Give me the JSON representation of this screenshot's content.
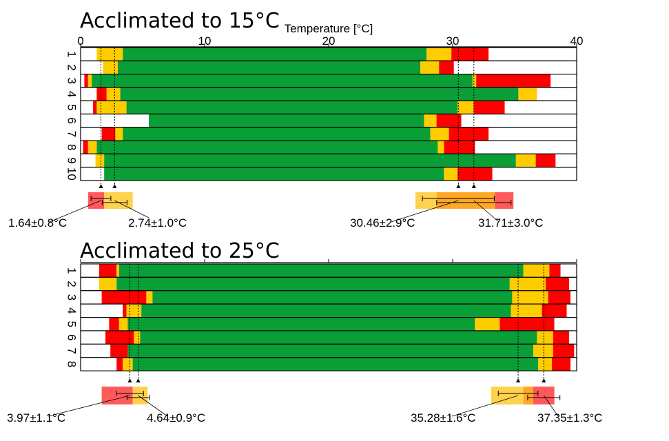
{
  "chart_data": [
    {
      "type": "bar",
      "orientation": "horizontal-stacked-ranges",
      "title": "Acclimated to 15°C",
      "xlabel": "Temperature [°C]",
      "xlim": [
        0,
        40
      ],
      "xticks": [
        0,
        10,
        20,
        30,
        40
      ],
      "show_tick_labels": true,
      "colors": {
        "green": "#0a9e37",
        "yellow": "#ffcc00",
        "red": "#ff0000",
        "white": "#ffffff"
      },
      "rows": [
        {
          "label": "1",
          "segments": [
            [
              "white",
              0,
              1.3
            ],
            [
              "yellow",
              1.3,
              3.4
            ],
            [
              "green",
              3.4,
              27.9
            ],
            [
              "yellow",
              27.9,
              29.9
            ],
            [
              "red",
              29.9,
              32.9
            ],
            [
              "white",
              32.9,
              40
            ]
          ]
        },
        {
          "label": "2",
          "segments": [
            [
              "white",
              0,
              1.8
            ],
            [
              "yellow",
              1.8,
              3.0
            ],
            [
              "green",
              3.0,
              27.4
            ],
            [
              "yellow",
              27.4,
              28.9
            ],
            [
              "red",
              28.9,
              30.1
            ],
            [
              "white",
              30.1,
              40
            ]
          ]
        },
        {
          "label": "3",
          "segments": [
            [
              "white",
              0,
              0.3
            ],
            [
              "red",
              0.3,
              0.6
            ],
            [
              "yellow",
              0.6,
              0.9
            ],
            [
              "green",
              0.9,
              31.6
            ],
            [
              "yellow",
              31.6,
              31.9
            ],
            [
              "red",
              31.9,
              37.9
            ],
            [
              "white",
              37.9,
              40
            ]
          ]
        },
        {
          "label": "4",
          "segments": [
            [
              "white",
              0,
              1.3
            ],
            [
              "red",
              1.3,
              2.1
            ],
            [
              "yellow",
              2.1,
              3.2
            ],
            [
              "green",
              3.2,
              35.3
            ],
            [
              "yellow",
              35.3,
              36.8
            ],
            [
              "white",
              36.8,
              40
            ]
          ]
        },
        {
          "label": "5",
          "segments": [
            [
              "white",
              0,
              1.0
            ],
            [
              "red",
              1.0,
              1.3
            ],
            [
              "yellow",
              1.3,
              3.7
            ],
            [
              "green",
              3.7,
              30.4
            ],
            [
              "yellow",
              30.4,
              31.7
            ],
            [
              "red",
              31.7,
              34.2
            ],
            [
              "white",
              34.2,
              40
            ]
          ]
        },
        {
          "label": "6",
          "segments": [
            [
              "white",
              0,
              5.5
            ],
            [
              "green",
              5.5,
              27.7
            ],
            [
              "yellow",
              27.7,
              28.7
            ],
            [
              "red",
              28.7,
              30.7
            ],
            [
              "white",
              30.7,
              40
            ]
          ]
        },
        {
          "label": "7",
          "segments": [
            [
              "white",
              0,
              1.7
            ],
            [
              "red",
              1.7,
              2.8
            ],
            [
              "yellow",
              2.8,
              3.4
            ],
            [
              "green",
              3.4,
              28.2
            ],
            [
              "yellow",
              28.2,
              29.7
            ],
            [
              "red",
              29.7,
              32.9
            ],
            [
              "white",
              32.9,
              40
            ]
          ]
        },
        {
          "label": "8",
          "segments": [
            [
              "white",
              0,
              0.2
            ],
            [
              "red",
              0.2,
              0.6
            ],
            [
              "yellow",
              0.6,
              1.3
            ],
            [
              "green",
              1.3,
              28.8
            ],
            [
              "yellow",
              28.8,
              29.3
            ],
            [
              "red",
              29.3,
              31.8
            ],
            [
              "white",
              31.8,
              40
            ]
          ]
        },
        {
          "label": "9",
          "segments": [
            [
              "white",
              0,
              1.2
            ],
            [
              "yellow",
              1.2,
              1.9
            ],
            [
              "green",
              1.9,
              35.1
            ],
            [
              "yellow",
              35.1,
              36.7
            ],
            [
              "red",
              36.7,
              38.3
            ],
            [
              "white",
              38.3,
              40
            ]
          ]
        },
        {
          "label": "10",
          "segments": [
            [
              "white",
              0,
              1.9
            ],
            [
              "green",
              1.9,
              29.3
            ],
            [
              "yellow",
              29.3,
              30.4
            ],
            [
              "red",
              30.4,
              33.2
            ],
            [
              "white",
              33.2,
              40
            ]
          ]
        }
      ],
      "summary_bands": [
        {
          "segments": [
            [
              "red",
              0.6,
              1.9
            ],
            [
              "yellow",
              1.9,
              4.2
            ]
          ],
          "errorbars": [
            [
              0.84,
              2.44
            ],
            [
              1.74,
              3.74
            ]
          ]
        },
        {
          "segments": [
            [
              "yellow",
              27.0,
              28.7
            ],
            [
              "orange",
              28.7,
              33.4
            ],
            [
              "red",
              33.4,
              34.9
            ]
          ],
          "errorbars": [
            [
              27.56,
              33.36
            ],
            [
              28.71,
              34.71
            ]
          ]
        }
      ],
      "annotations": [
        {
          "text": "1.64±0.8°C",
          "x": 1.64
        },
        {
          "text": "2.74±1.0°C",
          "x": 2.74
        },
        {
          "text": "30.46±2.9°C",
          "x": 30.46
        },
        {
          "text": "31.71±3.0°C",
          "x": 31.71
        }
      ]
    },
    {
      "type": "bar",
      "orientation": "horizontal-stacked-ranges",
      "title": "Acclimated to 25°C",
      "xlabel": "",
      "xlim": [
        0,
        40
      ],
      "xticks": [
        0,
        10,
        20,
        30,
        40
      ],
      "show_tick_labels": false,
      "colors": {
        "green": "#0a9e37",
        "yellow": "#ffcc00",
        "red": "#ff0000",
        "white": "#ffffff"
      },
      "rows": [
        {
          "label": "1",
          "segments": [
            [
              "white",
              0,
              1.5
            ],
            [
              "red",
              1.5,
              2.9
            ],
            [
              "yellow",
              2.9,
              3.1
            ],
            [
              "green",
              3.1,
              35.7
            ],
            [
              "yellow",
              35.7,
              37.8
            ],
            [
              "red",
              37.8,
              38.7
            ],
            [
              "white",
              38.7,
              40
            ]
          ]
        },
        {
          "label": "2",
          "segments": [
            [
              "white",
              0,
              1.5
            ],
            [
              "yellow",
              1.5,
              2.9
            ],
            [
              "green",
              2.9,
              34.6
            ],
            [
              "yellow",
              34.6,
              37.5
            ],
            [
              "red",
              37.5,
              39.4
            ],
            [
              "white",
              39.4,
              40
            ]
          ]
        },
        {
          "label": "3",
          "segments": [
            [
              "white",
              0,
              1.7
            ],
            [
              "red",
              1.7,
              5.3
            ],
            [
              "yellow",
              5.3,
              5.8
            ],
            [
              "green",
              5.8,
              34.8
            ],
            [
              "yellow",
              34.8,
              37.7
            ],
            [
              "red",
              37.7,
              39.5
            ],
            [
              "white",
              39.5,
              40
            ]
          ]
        },
        {
          "label": "4",
          "segments": [
            [
              "white",
              0,
              3.4
            ],
            [
              "red",
              3.4,
              3.7
            ],
            [
              "yellow",
              3.7,
              4.9
            ],
            [
              "green",
              4.9,
              34.7
            ],
            [
              "yellow",
              34.7,
              37.2
            ],
            [
              "red",
              37.2,
              39.2
            ],
            [
              "white",
              39.2,
              40
            ]
          ]
        },
        {
          "label": "5",
          "segments": [
            [
              "white",
              0,
              2.3
            ],
            [
              "red",
              2.3,
              3.1
            ],
            [
              "yellow",
              3.1,
              3.8
            ],
            [
              "green",
              3.8,
              31.8
            ],
            [
              "yellow",
              31.8,
              33.8
            ],
            [
              "red",
              33.8,
              38.2
            ],
            [
              "white",
              38.2,
              40
            ]
          ]
        },
        {
          "label": "6",
          "segments": [
            [
              "white",
              0,
              2.0
            ],
            [
              "red",
              2.0,
              4.3
            ],
            [
              "yellow",
              4.3,
              4.8
            ],
            [
              "green",
              4.8,
              36.8
            ],
            [
              "yellow",
              36.8,
              38.1
            ],
            [
              "red",
              38.1,
              39.4
            ],
            [
              "white",
              39.4,
              40
            ]
          ]
        },
        {
          "label": "7",
          "segments": [
            [
              "white",
              0,
              2.4
            ],
            [
              "red",
              2.4,
              3.8
            ],
            [
              "green",
              3.8,
              36.5
            ],
            [
              "yellow",
              36.5,
              38.1
            ],
            [
              "red",
              38.1,
              39.8
            ],
            [
              "white",
              39.8,
              40
            ]
          ]
        },
        {
          "label": "8",
          "segments": [
            [
              "white",
              0,
              2.9
            ],
            [
              "red",
              2.9,
              3.4
            ],
            [
              "yellow",
              3.4,
              4.2
            ],
            [
              "green",
              4.2,
              36.9
            ],
            [
              "yellow",
              36.9,
              38.0
            ],
            [
              "red",
              38.0,
              39.5
            ],
            [
              "white",
              39.5,
              40
            ]
          ]
        }
      ],
      "summary_bands": [
        {
          "segments": [
            [
              "red",
              1.7,
              4.2
            ],
            [
              "yellow",
              4.2,
              5.4
            ]
          ],
          "errorbars": [
            [
              2.87,
              5.07
            ],
            [
              3.74,
              5.54
            ]
          ]
        },
        {
          "segments": [
            [
              "yellow",
              33.1,
              35.7
            ],
            [
              "orange",
              35.7,
              36.5
            ],
            [
              "red",
              36.5,
              38.2
            ]
          ],
          "errorbars": [
            [
              33.68,
              36.88
            ],
            [
              36.05,
              38.65
            ]
          ]
        }
      ],
      "annotations": [
        {
          "text": "3.97±1.1°C",
          "x": 3.97
        },
        {
          "text": "4.64±0.9°C",
          "x": 4.64
        },
        {
          "text": "35.28±1.6°C",
          "x": 35.28
        },
        {
          "text": "37.35±1.3°C",
          "x": 37.35
        }
      ]
    }
  ]
}
